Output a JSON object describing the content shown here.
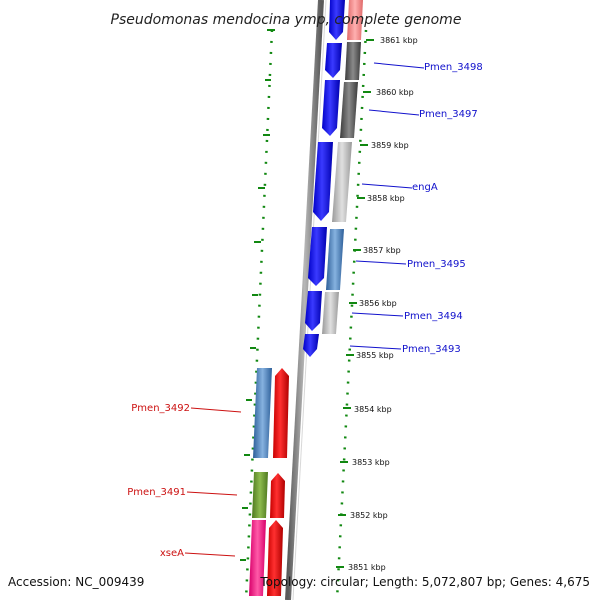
{
  "title": "Pseudomonas mendocina ymp, complete genome",
  "accession": "Accession: NC_009439",
  "summary": "Topology: circular; Length: 5,072,807 bp; Genes: 4,675",
  "colors": {
    "forward_gene": "#1111ee",
    "reverse_gene": "#ee1111",
    "forward_label": "#1111cc",
    "reverse_label": "#cc1111",
    "tick": "#118811",
    "backbone": "#777777"
  },
  "kbp_ticks": [
    "3861 kbp",
    "3860 kbp",
    "3859 kbp",
    "3858 kbp",
    "3857 kbp",
    "3856 kbp",
    "3855 kbp",
    "3854 kbp",
    "3853 kbp",
    "3852 kbp",
    "3851 kbp"
  ],
  "gene_labels": [
    {
      "name": "Pmen_3498",
      "strand": "forward"
    },
    {
      "name": "Pmen_3497",
      "strand": "forward"
    },
    {
      "name": "engA",
      "strand": "forward"
    },
    {
      "name": "Pmen_3495",
      "strand": "forward"
    },
    {
      "name": "Pmen_3494",
      "strand": "forward"
    },
    {
      "name": "Pmen_3493",
      "strand": "forward"
    },
    {
      "name": "Pmen_3492",
      "strand": "reverse"
    },
    {
      "name": "Pmen_3491",
      "strand": "reverse"
    },
    {
      "name": "xseA",
      "strand": "reverse"
    }
  ]
}
